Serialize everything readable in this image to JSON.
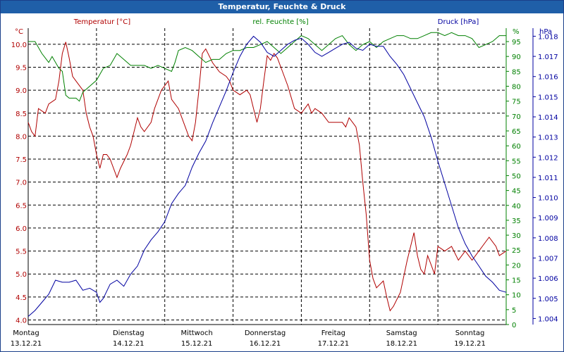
{
  "window": {
    "title": "Temperatur, Feuchte & Druck"
  },
  "chart_data": {
    "type": "line",
    "title": "Temperatur, Feuchte & Druck",
    "colors": {
      "temperature": "#b00000",
      "humidity": "#008000",
      "pressure": "#0000a0",
      "grid": "#000000",
      "title_bg": "#1f5fa8"
    },
    "axes": {
      "temperature": {
        "unit": "°C",
        "label": "Temperatur [°C]",
        "ylim": [
          3.9,
          10.35
        ],
        "ticks": [
          "10.0",
          "9.5",
          "9.0",
          "8.5",
          "8.0",
          "7.5",
          "7.0",
          "6.5",
          "6.0",
          "5.5",
          "5.0",
          "4.5",
          "4.0"
        ]
      },
      "humidity": {
        "unit": "%",
        "label": "rel. Feuchte [%]",
        "ylim": [
          0,
          99.5
        ],
        "ticks": [
          "95",
          "90",
          "85",
          "80",
          "75",
          "70",
          "65",
          "60",
          "55",
          "50",
          "45",
          "40",
          "35",
          "30",
          "25",
          "20",
          "15",
          "10",
          "5",
          "0"
        ]
      },
      "pressure": {
        "unit": "hPa",
        "label": "Druck [hPa]",
        "ylim": [
          1.0037,
          1.0184
        ],
        "ticks": [
          "1.018",
          "1.017",
          "1.016",
          "1.015",
          "1.014",
          "1.013",
          "1.012",
          "1.011",
          "1.010",
          "1.009",
          "1.008",
          "1.007",
          "1.006",
          "1.005",
          "1.004"
        ]
      }
    },
    "x_axis": {
      "range_days": [
        0,
        7
      ],
      "days": [
        {
          "name": "Montag",
          "date": "13.12.21"
        },
        {
          "name": "Dienstag",
          "date": "14.12.21"
        },
        {
          "name": "Mittwoch",
          "date": "15.12.21"
        },
        {
          "name": "Donnerstag",
          "date": "16.12.21"
        },
        {
          "name": "Freitag",
          "date": "17.12.21"
        },
        {
          "name": "Samstag",
          "date": "18.12.21"
        },
        {
          "name": "Sonntag",
          "date": "19.12.21"
        }
      ]
    },
    "series": [
      {
        "name": "Temperatur [°C]",
        "axis": "temperature",
        "color": "#b00000",
        "points": [
          [
            0,
            8.3
          ],
          [
            0.05,
            8.1
          ],
          [
            0.1,
            8.0
          ],
          [
            0.15,
            8.6
          ],
          [
            0.25,
            8.5
          ],
          [
            0.3,
            8.7
          ],
          [
            0.4,
            8.8
          ],
          [
            0.45,
            9.2
          ],
          [
            0.5,
            9.8
          ],
          [
            0.55,
            10.05
          ],
          [
            0.6,
            9.7
          ],
          [
            0.65,
            9.3
          ],
          [
            0.7,
            9.2
          ],
          [
            0.8,
            9.0
          ],
          [
            0.85,
            8.5
          ],
          [
            0.9,
            8.2
          ],
          [
            0.95,
            8.0
          ],
          [
            1.0,
            7.6
          ],
          [
            1.05,
            7.3
          ],
          [
            1.1,
            7.6
          ],
          [
            1.15,
            7.6
          ],
          [
            1.2,
            7.5
          ],
          [
            1.3,
            7.1
          ],
          [
            1.35,
            7.3
          ],
          [
            1.45,
            7.6
          ],
          [
            1.5,
            7.8
          ],
          [
            1.6,
            8.4
          ],
          [
            1.65,
            8.2
          ],
          [
            1.7,
            8.1
          ],
          [
            1.8,
            8.3
          ],
          [
            1.85,
            8.6
          ],
          [
            1.95,
            9.0
          ],
          [
            2.05,
            9.2
          ],
          [
            2.1,
            8.8
          ],
          [
            2.2,
            8.6
          ],
          [
            2.3,
            8.2
          ],
          [
            2.35,
            8.0
          ],
          [
            2.4,
            7.9
          ],
          [
            2.45,
            8.3
          ],
          [
            2.5,
            9.0
          ],
          [
            2.55,
            9.8
          ],
          [
            2.6,
            9.9
          ],
          [
            2.7,
            9.6
          ],
          [
            2.8,
            9.4
          ],
          [
            2.9,
            9.3
          ],
          [
            2.95,
            9.2
          ],
          [
            3.0,
            9.0
          ],
          [
            3.1,
            8.9
          ],
          [
            3.2,
            9.0
          ],
          [
            3.25,
            8.9
          ],
          [
            3.3,
            8.6
          ],
          [
            3.35,
            8.3
          ],
          [
            3.4,
            8.6
          ],
          [
            3.45,
            9.2
          ],
          [
            3.5,
            9.75
          ],
          [
            3.55,
            9.65
          ],
          [
            3.6,
            9.8
          ],
          [
            3.65,
            9.7
          ],
          [
            3.7,
            9.5
          ],
          [
            3.8,
            9.1
          ],
          [
            3.9,
            8.6
          ],
          [
            4.0,
            8.5
          ],
          [
            4.1,
            8.7
          ],
          [
            4.15,
            8.5
          ],
          [
            4.2,
            8.6
          ],
          [
            4.3,
            8.5
          ],
          [
            4.4,
            8.3
          ],
          [
            4.5,
            8.3
          ],
          [
            4.6,
            8.3
          ],
          [
            4.65,
            8.2
          ],
          [
            4.7,
            8.4
          ],
          [
            4.75,
            8.3
          ],
          [
            4.8,
            8.2
          ],
          [
            4.85,
            7.8
          ],
          [
            4.9,
            7.0
          ],
          [
            4.95,
            6.3
          ],
          [
            5.0,
            5.3
          ],
          [
            5.05,
            4.9
          ],
          [
            5.1,
            4.7
          ],
          [
            5.2,
            4.85
          ],
          [
            5.25,
            4.5
          ],
          [
            5.3,
            4.2
          ],
          [
            5.35,
            4.3
          ],
          [
            5.45,
            4.6
          ],
          [
            5.55,
            5.3
          ],
          [
            5.65,
            5.9
          ],
          [
            5.7,
            5.4
          ],
          [
            5.75,
            5.1
          ],
          [
            5.8,
            5.0
          ],
          [
            5.85,
            5.4
          ],
          [
            5.9,
            5.2
          ],
          [
            5.95,
            5.0
          ],
          [
            6.0,
            5.6
          ],
          [
            6.1,
            5.5
          ],
          [
            6.2,
            5.6
          ],
          [
            6.3,
            5.3
          ],
          [
            6.4,
            5.5
          ],
          [
            6.5,
            5.3
          ],
          [
            6.6,
            5.5
          ],
          [
            6.7,
            5.7
          ],
          [
            6.75,
            5.8
          ],
          [
            6.85,
            5.6
          ],
          [
            6.9,
            5.4
          ],
          [
            7.0,
            5.5
          ]
        ]
      },
      {
        "name": "rel. Feuchte [%]",
        "axis": "humidity",
        "color": "#008000",
        "points": [
          [
            0,
            95
          ],
          [
            0.1,
            95
          ],
          [
            0.2,
            91
          ],
          [
            0.3,
            88
          ],
          [
            0.35,
            90
          ],
          [
            0.45,
            86
          ],
          [
            0.5,
            85
          ],
          [
            0.55,
            77
          ],
          [
            0.6,
            76
          ],
          [
            0.7,
            76
          ],
          [
            0.75,
            75
          ],
          [
            0.8,
            78
          ],
          [
            0.9,
            80
          ],
          [
            1.0,
            82
          ],
          [
            1.1,
            86
          ],
          [
            1.2,
            87
          ],
          [
            1.3,
            91
          ],
          [
            1.4,
            89
          ],
          [
            1.5,
            87
          ],
          [
            1.6,
            87
          ],
          [
            1.7,
            87
          ],
          [
            1.8,
            86
          ],
          [
            1.9,
            87
          ],
          [
            2.0,
            86
          ],
          [
            2.1,
            85
          ],
          [
            2.15,
            88
          ],
          [
            2.2,
            92
          ],
          [
            2.3,
            93
          ],
          [
            2.4,
            92
          ],
          [
            2.5,
            90
          ],
          [
            2.6,
            88
          ],
          [
            2.7,
            89
          ],
          [
            2.8,
            89
          ],
          [
            2.9,
            91
          ],
          [
            3.0,
            92
          ],
          [
            3.1,
            92
          ],
          [
            3.2,
            93
          ],
          [
            3.3,
            93
          ],
          [
            3.4,
            94
          ],
          [
            3.5,
            95
          ],
          [
            3.6,
            93
          ],
          [
            3.7,
            91
          ],
          [
            3.8,
            93
          ],
          [
            3.9,
            95
          ],
          [
            4.0,
            97
          ],
          [
            4.1,
            96
          ],
          [
            4.2,
            94
          ],
          [
            4.3,
            92
          ],
          [
            4.4,
            94
          ],
          [
            4.5,
            96
          ],
          [
            4.6,
            97
          ],
          [
            4.7,
            94
          ],
          [
            4.8,
            92
          ],
          [
            4.9,
            94
          ],
          [
            5.0,
            95
          ],
          [
            5.1,
            93
          ],
          [
            5.2,
            95
          ],
          [
            5.3,
            96
          ],
          [
            5.4,
            97
          ],
          [
            5.5,
            97
          ],
          [
            5.6,
            96
          ],
          [
            5.7,
            96
          ],
          [
            5.8,
            97
          ],
          [
            5.9,
            98
          ],
          [
            6.0,
            98
          ],
          [
            6.1,
            97
          ],
          [
            6.2,
            98
          ],
          [
            6.3,
            97
          ],
          [
            6.4,
            97
          ],
          [
            6.5,
            96
          ],
          [
            6.6,
            93
          ],
          [
            6.7,
            94
          ],
          [
            6.8,
            95
          ],
          [
            6.9,
            97
          ],
          [
            7.0,
            97
          ]
        ]
      },
      {
        "name": "Druck [hPa]",
        "axis": "pressure",
        "color": "#0000a0",
        "points": [
          [
            0,
            1.0041
          ],
          [
            0.1,
            1.0044
          ],
          [
            0.2,
            1.0048
          ],
          [
            0.3,
            1.0052
          ],
          [
            0.4,
            1.0059
          ],
          [
            0.5,
            1.0058
          ],
          [
            0.6,
            1.0058
          ],
          [
            0.7,
            1.0059
          ],
          [
            0.8,
            1.0054
          ],
          [
            0.9,
            1.0055
          ],
          [
            1.0,
            1.0053
          ],
          [
            1.05,
            1.0048
          ],
          [
            1.1,
            1.005
          ],
          [
            1.2,
            1.0057
          ],
          [
            1.3,
            1.0059
          ],
          [
            1.4,
            1.0056
          ],
          [
            1.5,
            1.0062
          ],
          [
            1.6,
            1.0066
          ],
          [
            1.7,
            1.0074
          ],
          [
            1.8,
            1.0079
          ],
          [
            1.9,
            1.0083
          ],
          [
            2.0,
            1.0088
          ],
          [
            2.1,
            1.0097
          ],
          [
            2.2,
            1.0102
          ],
          [
            2.3,
            1.0106
          ],
          [
            2.4,
            1.0115
          ],
          [
            2.5,
            1.0122
          ],
          [
            2.6,
            1.0128
          ],
          [
            2.7,
            1.0137
          ],
          [
            2.8,
            1.0145
          ],
          [
            2.9,
            1.0153
          ],
          [
            3.0,
            1.0162
          ],
          [
            3.1,
            1.017
          ],
          [
            3.2,
            1.0176
          ],
          [
            3.3,
            1.018
          ],
          [
            3.4,
            1.0177
          ],
          [
            3.5,
            1.0172
          ],
          [
            3.6,
            1.017
          ],
          [
            3.7,
            1.0173
          ],
          [
            3.8,
            1.0176
          ],
          [
            3.9,
            1.0178
          ],
          [
            4.0,
            1.0179
          ],
          [
            4.1,
            1.0176
          ],
          [
            4.2,
            1.0172
          ],
          [
            4.3,
            1.017
          ],
          [
            4.4,
            1.0172
          ],
          [
            4.5,
            1.0174
          ],
          [
            4.6,
            1.0176
          ],
          [
            4.7,
            1.0177
          ],
          [
            4.8,
            1.0174
          ],
          [
            4.9,
            1.0173
          ],
          [
            5.0,
            1.0176
          ],
          [
            5.1,
            1.0175
          ],
          [
            5.2,
            1.0175
          ],
          [
            5.3,
            1.017
          ],
          [
            5.4,
            1.0166
          ],
          [
            5.5,
            1.0161
          ],
          [
            5.6,
            1.0154
          ],
          [
            5.7,
            1.0147
          ],
          [
            5.8,
            1.014
          ],
          [
            5.9,
            1.013
          ],
          [
            6.0,
            1.0118
          ],
          [
            6.1,
            1.0107
          ],
          [
            6.2,
            1.0096
          ],
          [
            6.3,
            1.0085
          ],
          [
            6.4,
            1.0077
          ],
          [
            6.5,
            1.0071
          ],
          [
            6.6,
            1.0066
          ],
          [
            6.7,
            1.0061
          ],
          [
            6.8,
            1.0058
          ],
          [
            6.9,
            1.0054
          ],
          [
            7.0,
            1.0053
          ]
        ]
      }
    ]
  }
}
